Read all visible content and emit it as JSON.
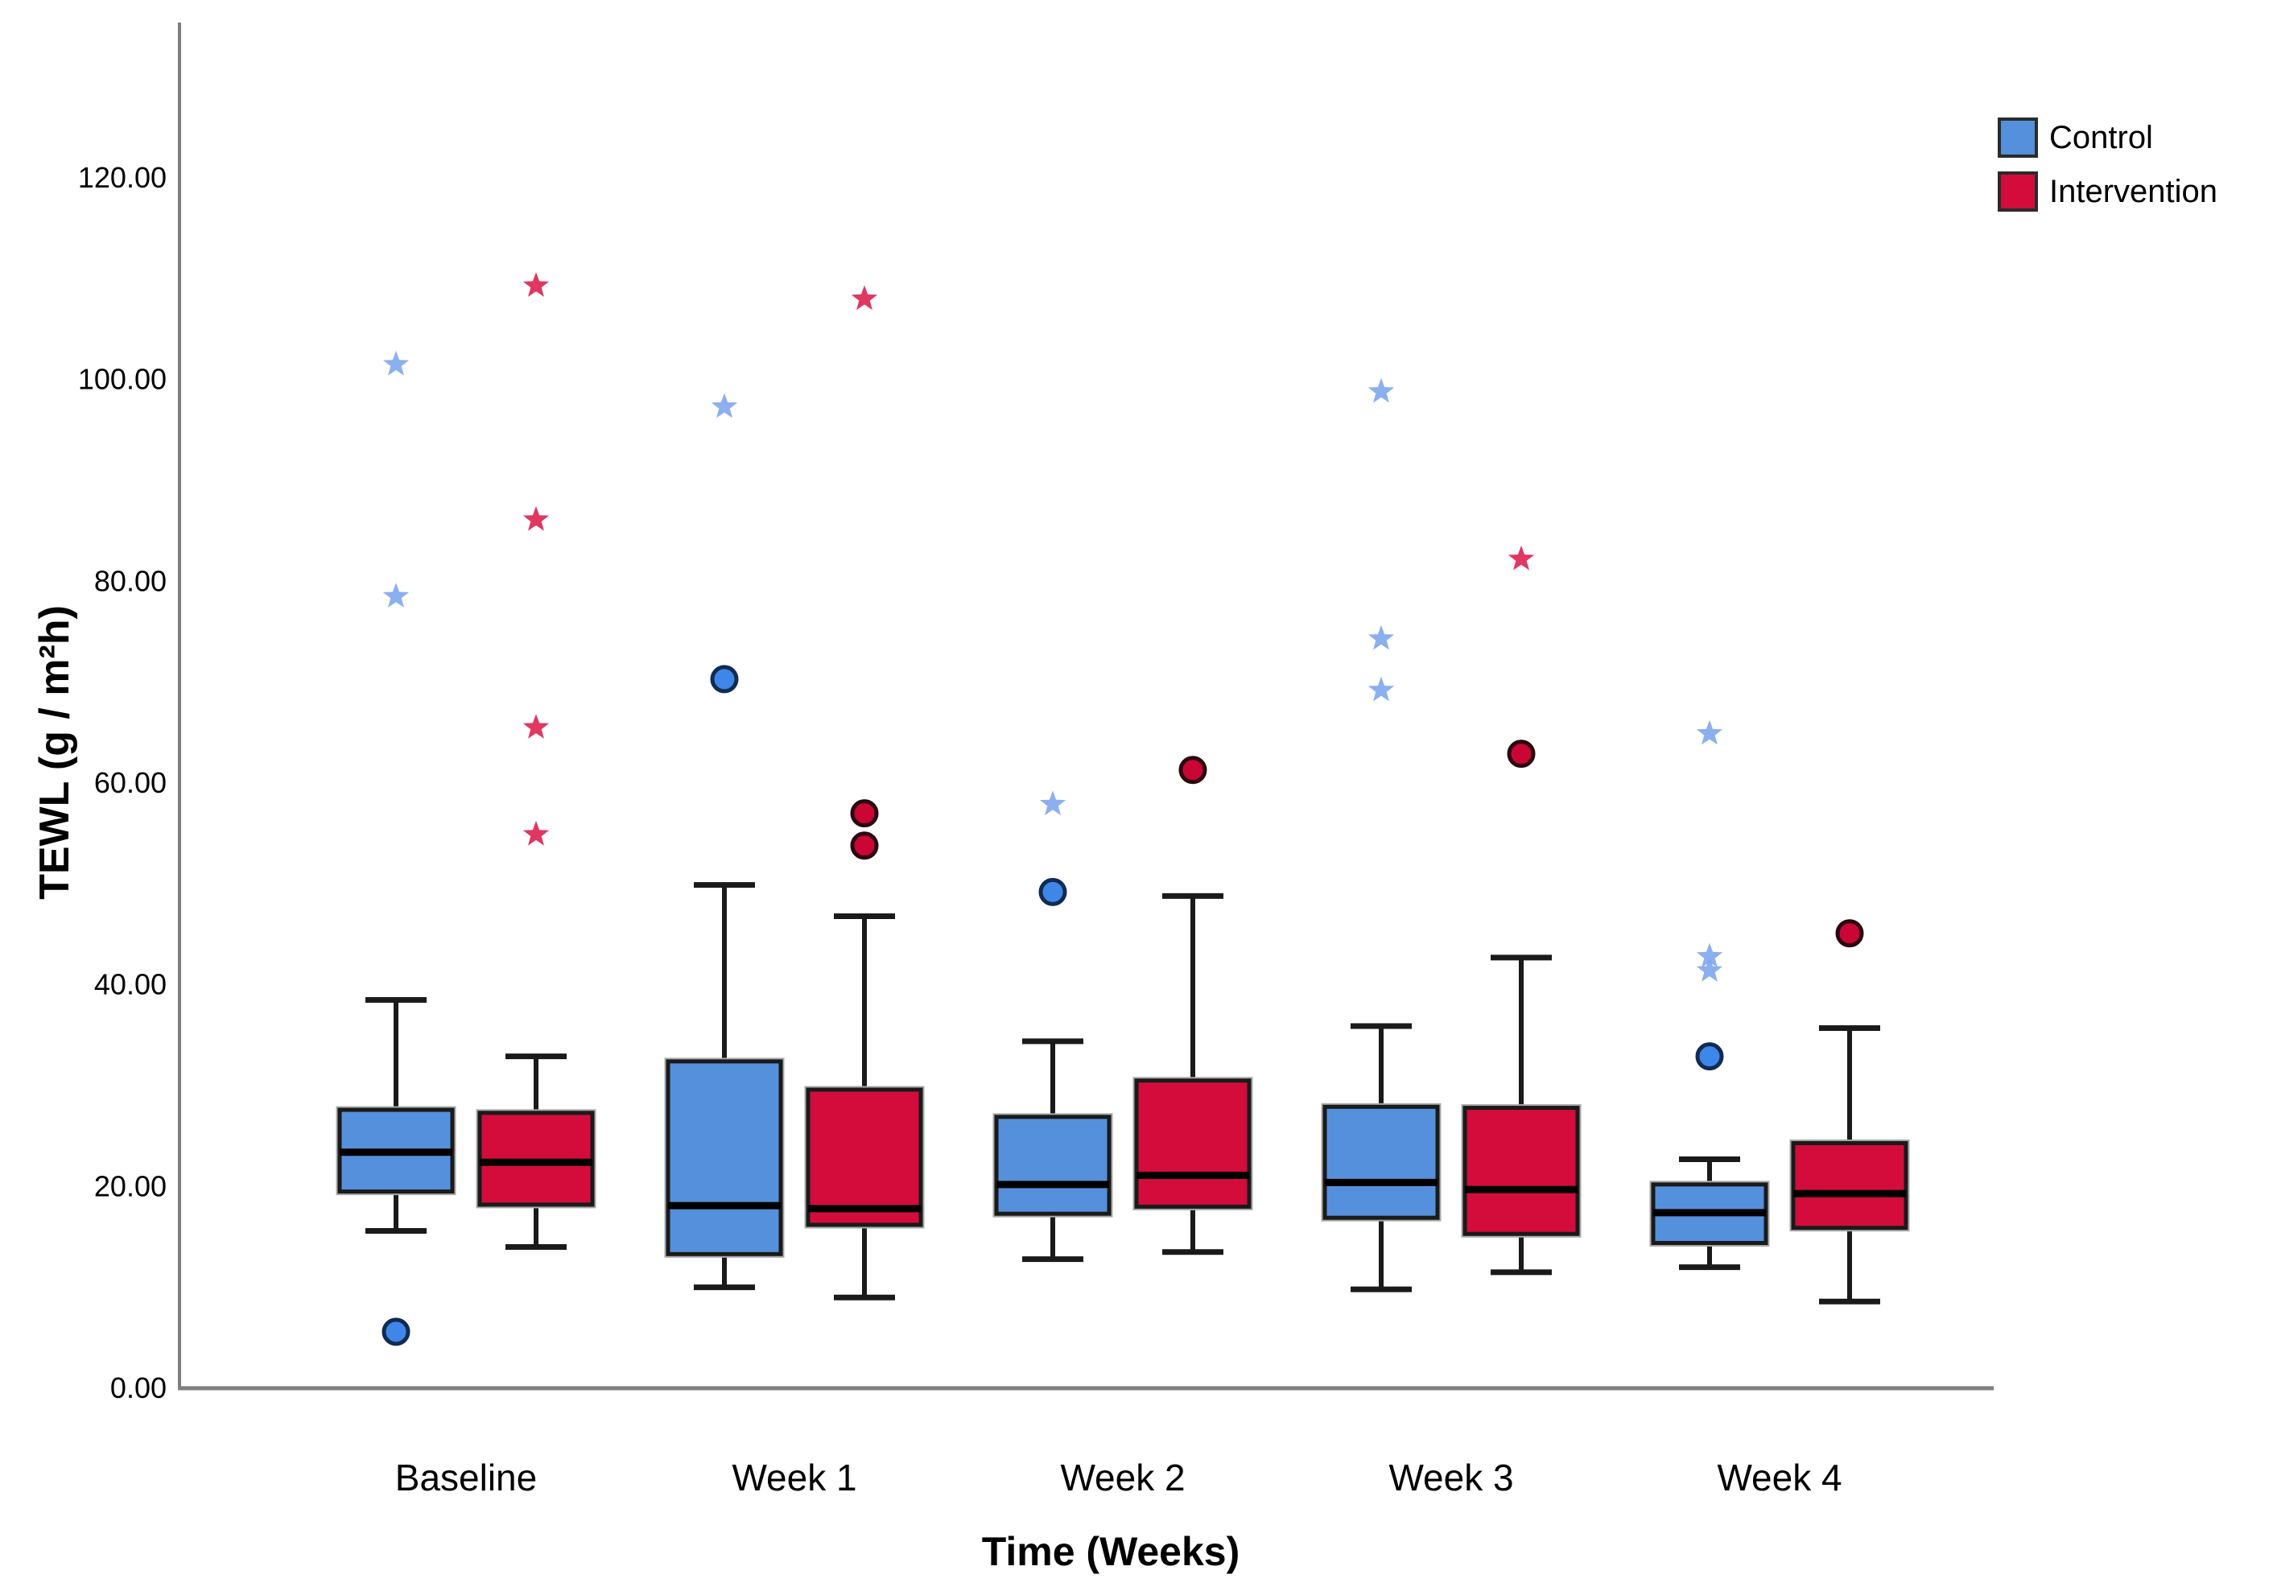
{
  "page": {
    "background": "#ffffff"
  },
  "legend": {
    "position": "top-right",
    "items": [
      {
        "label": "Control",
        "color": "#5590DC",
        "border": "#2b2b2b"
      },
      {
        "label": "Intervention",
        "color": "#D30C3C",
        "border": "#2b2b2b"
      }
    ]
  },
  "chart_data": {
    "type": "boxplot",
    "title": "",
    "xlabel": "Time (Weeks)",
    "ylabel": "TEWL (g / m²h)",
    "categories": [
      "Baseline",
      "Week 1",
      "Week 2",
      "Week 3",
      "Week 4"
    ],
    "y_ticks": [
      {
        "label": "0.00",
        "value": 0
      },
      {
        "label": "20.00",
        "value": 20
      },
      {
        "label": "40.00",
        "value": 40
      },
      {
        "label": "60.00",
        "value": 60
      },
      {
        "label": "80.00",
        "value": 80
      },
      {
        "label": "100.00",
        "value": 100
      },
      {
        "label": "120.00",
        "value": 120
      }
    ],
    "ylim": [
      0,
      135
    ],
    "grid": false,
    "legend_position": "top-right",
    "marker_semantics": {
      "circle": "outlier",
      "star": "extreme value"
    },
    "series": [
      {
        "name": "Control",
        "color": "#5590DC",
        "marker_star_color": "#7FA6EE",
        "marker_circle_fill": "#3E86E8",
        "marker_circle_border": "#122B52",
        "boxes": [
          {
            "category": "Baseline",
            "min": 15.6,
            "q1": 19.5,
            "median": 23.4,
            "q3": 27.6,
            "max": 38.5,
            "outliers_circle": [
              5.6
            ],
            "outliers_star": [
              78.5,
              101.5
            ]
          },
          {
            "category": "Week 1",
            "min": 10.0,
            "q1": 13.3,
            "median": 18.1,
            "q3": 32.4,
            "max": 49.9,
            "outliers_circle": [
              70.3
            ],
            "outliers_star": [
              97.3
            ]
          },
          {
            "category": "Week 2",
            "min": 12.8,
            "q1": 17.3,
            "median": 20.2,
            "q3": 26.9,
            "max": 34.4,
            "outliers_circle": [
              49.2
            ],
            "outliers_star": [
              57.9
            ]
          },
          {
            "category": "Week 3",
            "min": 9.8,
            "q1": 16.9,
            "median": 20.4,
            "q3": 27.9,
            "max": 35.9,
            "outliers_circle": [],
            "outliers_star": [
              69.2,
              74.3,
              98.8
            ]
          },
          {
            "category": "Week 4",
            "min": 12.0,
            "q1": 14.4,
            "median": 17.4,
            "q3": 20.2,
            "max": 22.7,
            "outliers_circle": [
              32.9
            ],
            "outliers_star": [
              41.4,
              42.8,
              64.9
            ]
          }
        ]
      },
      {
        "name": "Intervention",
        "color": "#D30C3C",
        "marker_star_color": "#DE2150",
        "marker_circle_fill": "#C90634",
        "marker_circle_border": "#2B050F",
        "boxes": [
          {
            "category": "Baseline",
            "min": 14.0,
            "q1": 18.2,
            "median": 22.4,
            "q3": 27.3,
            "max": 32.9,
            "outliers_circle": [],
            "outliers_star": [
              54.9,
              65.5,
              86.1,
              109.3
            ]
          },
          {
            "category": "Week 1",
            "min": 9.0,
            "q1": 16.2,
            "median": 17.8,
            "q3": 29.6,
            "max": 46.8,
            "outliers_circle": [
              53.8,
              57.0
            ],
            "outliers_star": [
              108.0
            ]
          },
          {
            "category": "Week 2",
            "min": 13.5,
            "q1": 18.0,
            "median": 21.1,
            "q3": 30.5,
            "max": 48.8,
            "outliers_circle": [
              61.3
            ],
            "outliers_star": []
          },
          {
            "category": "Week 3",
            "min": 11.5,
            "q1": 15.3,
            "median": 19.7,
            "q3": 27.8,
            "max": 42.7,
            "outliers_circle": [
              62.9
            ],
            "outliers_star": [
              82.2
            ]
          },
          {
            "category": "Week 4",
            "min": 8.6,
            "q1": 15.9,
            "median": 19.3,
            "q3": 24.3,
            "max": 35.7,
            "outliers_circle": [
              45.1
            ],
            "outliers_star": []
          }
        ]
      }
    ]
  }
}
